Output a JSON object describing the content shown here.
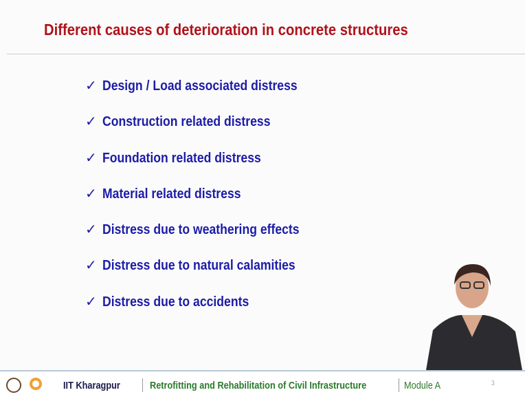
{
  "header": {
    "title": "Different causes of deterioration in concrete structures"
  },
  "bullets": [
    "Design / Load associated distress",
    "Construction related distress",
    "Foundation related distress",
    "Material related distress",
    "Distress due to weathering effects",
    "Distress due to natural calamities",
    "Distress due to accidents"
  ],
  "footer": {
    "institute": "IIT Kharagpur",
    "course": "Retrofitting and Rehabilitation of Civil Infrastructure",
    "module": "Module A",
    "page": "3"
  }
}
